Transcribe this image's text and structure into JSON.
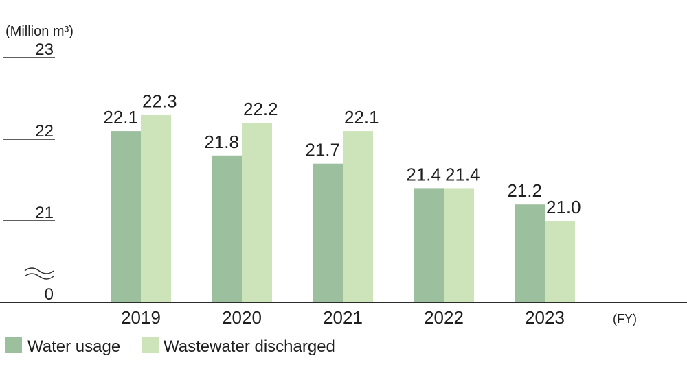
{
  "chart_data": {
    "type": "bar",
    "unit_label": "(Million m³)",
    "x_axis_label": "(FY)",
    "categories": [
      "2019",
      "2020",
      "2021",
      "2022",
      "2023"
    ],
    "series": [
      {
        "name": "Water usage",
        "values": [
          22.1,
          21.8,
          21.7,
          21.4,
          21.2
        ],
        "color": "#9cbf9e"
      },
      {
        "name": "Wastewater discharged",
        "values": [
          22.3,
          22.2,
          22.1,
          21.4,
          21.0
        ],
        "color": "#cde4bb"
      }
    ],
    "yticks": [
      0,
      21,
      22,
      23
    ],
    "ylim": [
      0,
      23
    ],
    "axis_break": true,
    "grid": false,
    "legend": "bottom-left"
  }
}
